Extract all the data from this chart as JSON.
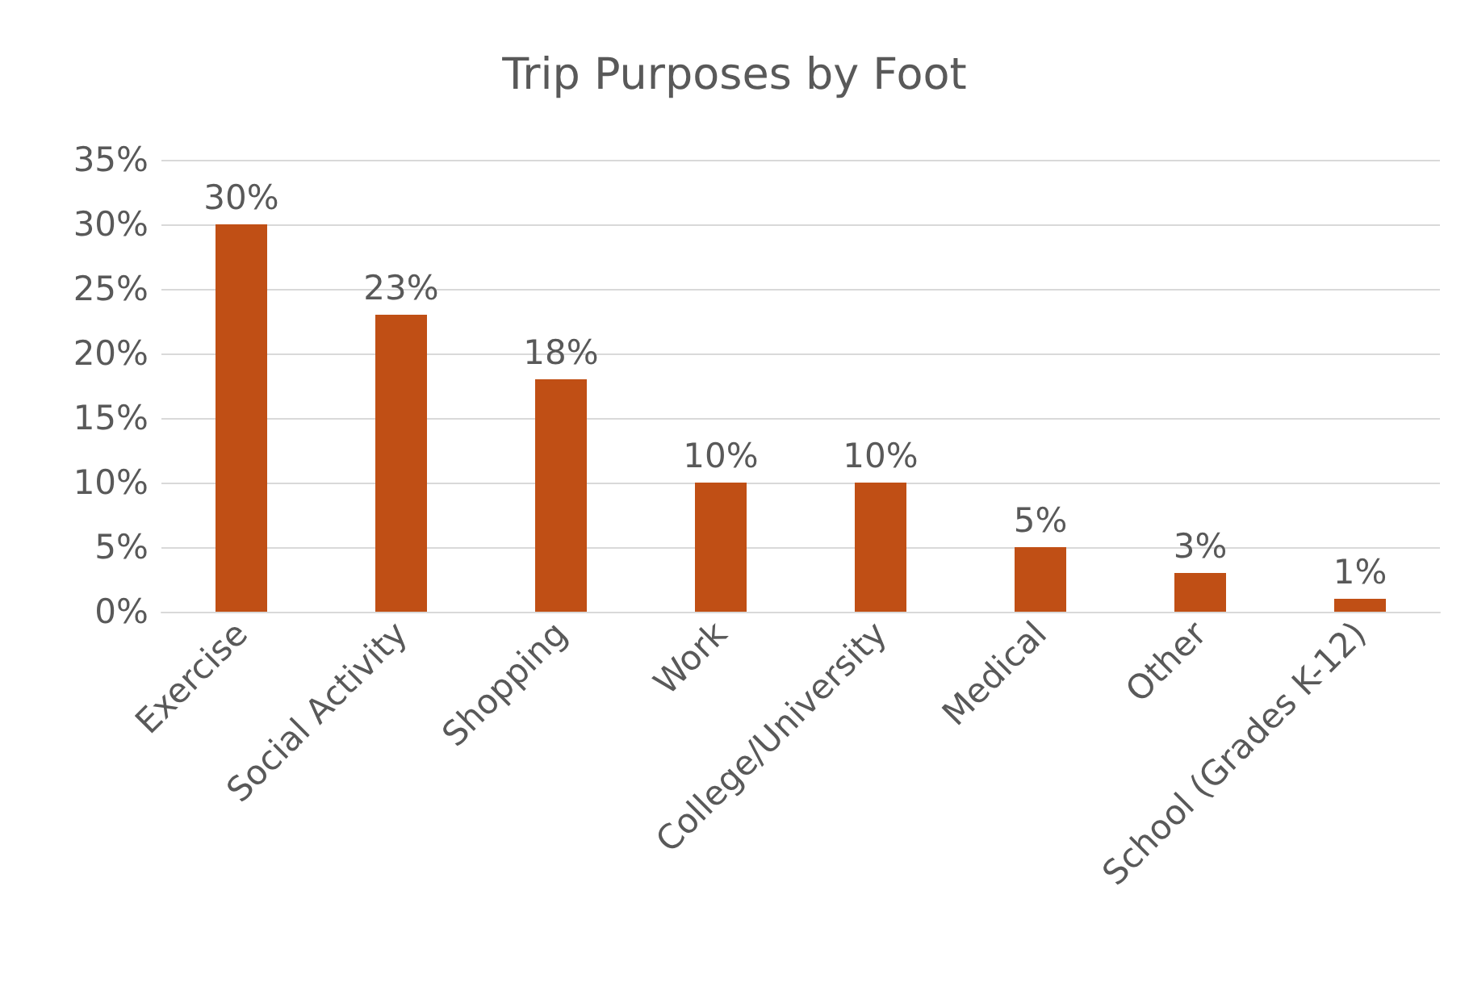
{
  "chart_data": {
    "type": "bar",
    "title": "Trip Purposes by Foot",
    "categories": [
      "Exercise",
      "Social Activity",
      "Shopping",
      "Work",
      "College/University",
      "Medical",
      "Other",
      "School (Grades K-12)"
    ],
    "values": [
      30,
      23,
      18,
      10,
      10,
      5,
      3,
      1
    ],
    "value_labels": [
      "30%",
      "23%",
      "18%",
      "10%",
      "10%",
      "5%",
      "3%",
      "1%"
    ],
    "color": "#c04f15",
    "ylim": [
      0,
      35
    ],
    "yticks": [
      {
        "value": 0,
        "label": "0%"
      },
      {
        "value": 5,
        "label": "5%"
      },
      {
        "value": 10,
        "label": "10%"
      },
      {
        "value": 15,
        "label": "15%"
      },
      {
        "value": 20,
        "label": "20%"
      },
      {
        "value": 25,
        "label": "25%"
      },
      {
        "value": 30,
        "label": "30%"
      },
      {
        "value": 35,
        "label": "35%"
      }
    ],
    "grid": true
  }
}
